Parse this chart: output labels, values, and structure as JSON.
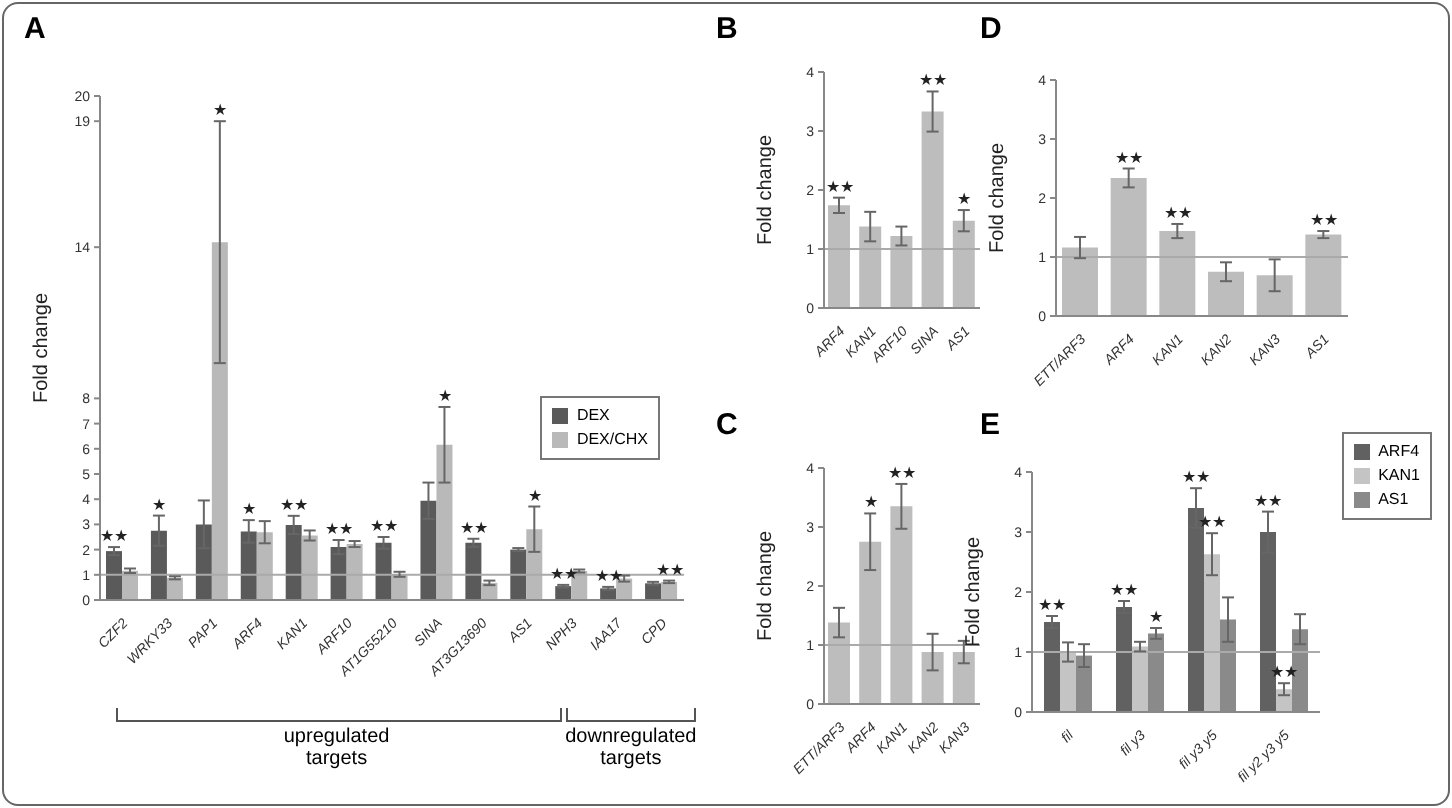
{
  "chart_data": [
    {
      "type": "bar",
      "title": "A",
      "ylabel": "Fold change",
      "categories": [
        "CZF2",
        "WRKY33",
        "PAP1",
        "ARF4",
        "KAN1",
        "ARF10",
        "AT1G55210",
        "SINA",
        "AT3G13690",
        "AS1",
        "NPH3",
        "IAA17",
        "CPD"
      ],
      "series": [
        {
          "name": "DEX",
          "color": "#5a5a5a",
          "values": [
            1.94,
            2.75,
            3.0,
            2.72,
            2.98,
            2.1,
            2.27,
            3.94,
            2.27,
            2.0,
            0.55,
            0.46,
            0.66
          ],
          "errors": [
            0.16,
            0.6,
            0.95,
            0.45,
            0.36,
            0.28,
            0.23,
            0.72,
            0.16,
            0.06,
            0.05,
            0.06,
            0.06
          ]
        },
        {
          "name": "DEX/CHX",
          "color": "#b9b9b9",
          "values": [
            1.16,
            0.88,
            14.2,
            2.69,
            2.56,
            2.22,
            1.02,
            6.16,
            0.68,
            2.81,
            1.15,
            0.85,
            0.72
          ],
          "errors": [
            0.09,
            0.06,
            4.8,
            0.44,
            0.2,
            0.12,
            0.1,
            1.5,
            0.09,
            0.9,
            0.06,
            0.12,
            0.05
          ]
        }
      ],
      "ylim": [
        0,
        20
      ],
      "yticks": [
        0,
        1,
        2,
        3,
        4,
        5,
        6,
        7,
        8,
        14,
        19,
        20
      ],
      "ref_lines": [
        {
          "axis": "y",
          "value": 1,
          "color": "#aaaaaa"
        }
      ],
      "legend": "right",
      "annotations": [
        {
          "text": "★★",
          "x": "CZF2",
          "y": 2.1
        },
        {
          "text": "★",
          "x": "WRKY33",
          "y": 3.35
        },
        {
          "text": "★",
          "x": "PAP1",
          "y": 19.0
        },
        {
          "text": "★",
          "x": "ARF4",
          "y": 3.17
        },
        {
          "text": "★★",
          "x": "KAN1",
          "y": 3.34
        },
        {
          "text": "★★",
          "x": "ARF10",
          "y": 2.38
        },
        {
          "text": "★★",
          "x": "AT1G55210",
          "y": 2.5
        },
        {
          "text": "★",
          "x": "SINA",
          "y": 7.66
        },
        {
          "text": "★★",
          "x": "AT3G13690",
          "y": 2.43
        },
        {
          "text": "★",
          "x": "AS1",
          "y": 3.71
        },
        {
          "text": "★★",
          "x": "NPH3",
          "y": 0.6
        },
        {
          "text": "★★",
          "x": "IAA17",
          "y": 0.52
        },
        {
          "text": "★★",
          "x": "CPD",
          "y": 0.77
        },
        "upregulated targets",
        "downregulated targets"
      ]
    },
    {
      "type": "bar",
      "title": "B",
      "ylabel": "Fold change",
      "categories": [
        "ARF4",
        "KAN1",
        "ARF10",
        "SINA",
        "AS1"
      ],
      "color": "#bdbdbd",
      "values": [
        1.74,
        1.38,
        1.22,
        3.33,
        1.48
      ],
      "errors": [
        0.13,
        0.25,
        0.16,
        0.34,
        0.18
      ],
      "ylim": [
        0,
        4
      ],
      "yticks": [
        0,
        1,
        2,
        3,
        4
      ],
      "ref_lines": [
        {
          "axis": "y",
          "value": 1,
          "color": "#aaaaaa"
        }
      ],
      "annotations": [
        {
          "text": "★★",
          "x": "ARF4",
          "y": 1.87
        },
        {
          "text": "★★",
          "x": "SINA",
          "y": 3.67
        },
        {
          "text": "★",
          "x": "AS1",
          "y": 1.66
        }
      ]
    },
    {
      "type": "bar",
      "title": "C",
      "ylabel": "Fold change",
      "categories": [
        "ETT/ARF3",
        "ARF4",
        "KAN1",
        "KAN2",
        "KAN3"
      ],
      "color": "#bdbdbd",
      "values": [
        1.38,
        2.75,
        3.35,
        0.88,
        0.88
      ],
      "errors": [
        0.25,
        0.48,
        0.38,
        0.31,
        0.19
      ],
      "ylim": [
        0,
        4
      ],
      "yticks": [
        0,
        1,
        2,
        3,
        4
      ],
      "ref_lines": [
        {
          "axis": "y",
          "value": 1,
          "color": "#aaaaaa"
        }
      ],
      "annotations": [
        {
          "text": "★",
          "x": "ARF4",
          "y": 3.23
        },
        {
          "text": "★★",
          "x": "KAN1",
          "y": 3.73
        }
      ]
    },
    {
      "type": "bar",
      "title": "D",
      "ylabel": "Fold change",
      "categories": [
        "ETT/ARF3",
        "ARF4",
        "KAN1",
        "KAN2",
        "KAN3",
        "AS1"
      ],
      "color": "#bdbdbd",
      "values": [
        1.16,
        2.34,
        1.44,
        0.75,
        0.69,
        1.38
      ],
      "errors": [
        0.18,
        0.16,
        0.12,
        0.16,
        0.27,
        0.06
      ],
      "ylim": [
        0,
        4
      ],
      "yticks": [
        0,
        1,
        2,
        3,
        4
      ],
      "ref_lines": [
        {
          "axis": "y",
          "value": 1,
          "color": "#aaaaaa"
        }
      ],
      "annotations": [
        {
          "text": "★★",
          "x": "ARF4",
          "y": 2.5
        },
        {
          "text": "★★",
          "x": "KAN1",
          "y": 1.56
        },
        {
          "text": "★★",
          "x": "AS1",
          "y": 1.44
        }
      ]
    },
    {
      "type": "bar",
      "title": "E",
      "ylabel": "Fold change",
      "categories": [
        "fil",
        "fil y3",
        "fil y3 y5",
        "fil y2 y3 y5"
      ],
      "series": [
        {
          "name": "ARF4",
          "color": "#616161",
          "values": [
            1.5,
            1.75,
            3.4,
            3.0
          ],
          "errors": [
            0.1,
            0.1,
            0.33,
            0.34
          ],
          "value_labels": [
            "★★",
            "★★",
            "★★",
            "★★"
          ]
        },
        {
          "name": "KAN1",
          "color": "#c4c4c4",
          "values": [
            1.0,
            1.09,
            2.63,
            0.38
          ],
          "errors": [
            0.16,
            0.08,
            0.35,
            0.1
          ],
          "value_labels": [
            null,
            null,
            "★★",
            "★★"
          ]
        },
        {
          "name": "AS1",
          "color": "#8a8a8a",
          "values": [
            0.94,
            1.31,
            1.54,
            1.38
          ],
          "errors": [
            0.19,
            0.09,
            0.37,
            0.25
          ],
          "value_labels": [
            null,
            "★",
            null,
            null
          ]
        }
      ],
      "ylim": [
        0,
        4
      ],
      "yticks": [
        0,
        1,
        2,
        3,
        4
      ],
      "ref_lines": [
        {
          "axis": "y",
          "value": 1,
          "color": "#aaaaaa"
        }
      ],
      "legend": "top right"
    }
  ]
}
